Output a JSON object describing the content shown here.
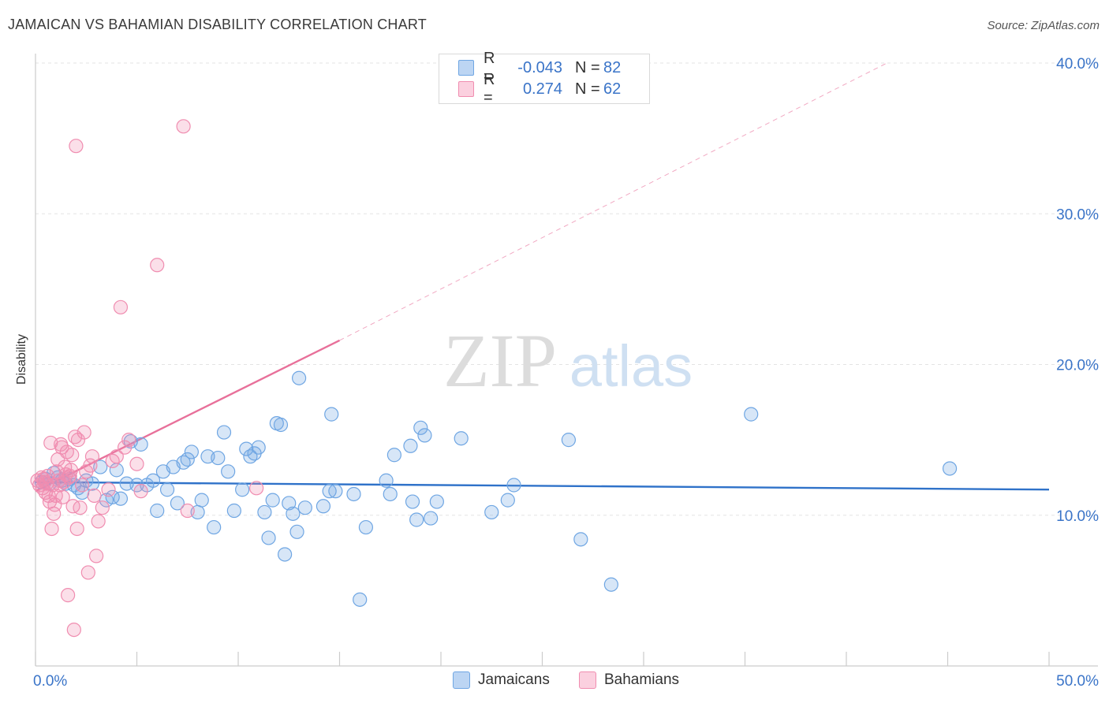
{
  "chart_data": {
    "type": "scatter",
    "title": "JAMAICAN VS BAHAMIAN DISABILITY CORRELATION CHART",
    "source": "Source: ZipAtlas.com",
    "ylabel": "Disability",
    "xlim": [
      0,
      50
    ],
    "ylim": [
      0,
      40
    ],
    "x_tick_labels": [
      "0.0%",
      "50.0%"
    ],
    "y_ticks": [
      10,
      20,
      30,
      40
    ],
    "y_tick_labels": [
      "10.0%",
      "20.0%",
      "30.0%",
      "40.0%"
    ],
    "watermark": "ZIPatlas",
    "legend": [
      {
        "name": "Jamaicans",
        "r_label": "R =",
        "r": "-0.043",
        "n_label": "N =",
        "n": "82",
        "color": "#6fa6e3"
      },
      {
        "name": "Bahamians",
        "r_label": "R =",
        "r": "0.274",
        "n_label": "N =",
        "n": "62",
        "color": "#f08db0"
      }
    ],
    "series": [
      {
        "name": "Jamaicans",
        "color": "#6fa6e3",
        "trend": {
          "x0": 0,
          "y0": 12.2,
          "x1": 50,
          "y1": 11.7,
          "color": "#2f72c9"
        },
        "points": [
          [
            0.3,
            12.2
          ],
          [
            0.5,
            12.4
          ],
          [
            0.7,
            12.1
          ],
          [
            0.9,
            12.8
          ],
          [
            1.1,
            12.5
          ],
          [
            1.3,
            12.3
          ],
          [
            1.5,
            12.1
          ],
          [
            1.7,
            12.4
          ],
          [
            1.9,
            12.0
          ],
          [
            2.1,
            11.8
          ],
          [
            2.3,
            11.5
          ],
          [
            2.5,
            12.3
          ],
          [
            2.8,
            12.1
          ],
          [
            3.2,
            13.2
          ],
          [
            3.5,
            11.0
          ],
          [
            3.8,
            11.2
          ],
          [
            4.0,
            13.0
          ],
          [
            4.2,
            11.1
          ],
          [
            4.5,
            12.1
          ],
          [
            4.7,
            14.9
          ],
          [
            5.0,
            12.0
          ],
          [
            5.2,
            14.7
          ],
          [
            5.5,
            12.0
          ],
          [
            5.8,
            12.3
          ],
          [
            6.0,
            10.3
          ],
          [
            6.3,
            12.9
          ],
          [
            6.5,
            11.7
          ],
          [
            6.8,
            13.2
          ],
          [
            7.0,
            10.8
          ],
          [
            7.3,
            13.5
          ],
          [
            7.5,
            13.7
          ],
          [
            7.7,
            14.2
          ],
          [
            8.0,
            10.2
          ],
          [
            8.2,
            11.0
          ],
          [
            8.5,
            13.9
          ],
          [
            8.8,
            9.2
          ],
          [
            9.0,
            13.8
          ],
          [
            9.3,
            15.5
          ],
          [
            9.5,
            12.9
          ],
          [
            9.8,
            10.3
          ],
          [
            10.2,
            11.7
          ],
          [
            10.4,
            14.4
          ],
          [
            10.6,
            13.9
          ],
          [
            10.8,
            14.1
          ],
          [
            11.0,
            14.5
          ],
          [
            11.3,
            10.2
          ],
          [
            11.5,
            8.5
          ],
          [
            11.7,
            11.0
          ],
          [
            11.9,
            16.1
          ],
          [
            12.1,
            16.0
          ],
          [
            12.3,
            7.4
          ],
          [
            12.5,
            10.8
          ],
          [
            12.7,
            10.1
          ],
          [
            13.0,
            19.1
          ],
          [
            12.9,
            8.9
          ],
          [
            13.3,
            10.5
          ],
          [
            14.2,
            10.6
          ],
          [
            14.5,
            11.6
          ],
          [
            14.6,
            16.7
          ],
          [
            14.8,
            11.6
          ],
          [
            15.7,
            11.4
          ],
          [
            16.0,
            4.4
          ],
          [
            16.3,
            9.2
          ],
          [
            17.3,
            12.3
          ],
          [
            17.5,
            11.4
          ],
          [
            17.7,
            14.0
          ],
          [
            18.5,
            14.6
          ],
          [
            18.6,
            10.9
          ],
          [
            18.8,
            9.7
          ],
          [
            19.0,
            15.8
          ],
          [
            19.2,
            15.3
          ],
          [
            19.5,
            9.8
          ],
          [
            19.8,
            10.9
          ],
          [
            21.0,
            15.1
          ],
          [
            22.5,
            10.2
          ],
          [
            23.3,
            11.0
          ],
          [
            23.6,
            12.0
          ],
          [
            26.3,
            15.0
          ],
          [
            26.9,
            8.4
          ],
          [
            28.4,
            5.4
          ],
          [
            35.3,
            16.7
          ],
          [
            45.1,
            13.1
          ]
        ]
      },
      {
        "name": "Bahamians",
        "color": "#f08db0",
        "trend": {
          "x0": 0,
          "y0": 11.6,
          "x1": 15,
          "y1": 21.6,
          "color": "#e8709a",
          "dash_x1": 42,
          "dash_y1": 40.0
        },
        "points": [
          [
            0.1,
            12.3
          ],
          [
            0.2,
            12.0
          ],
          [
            0.3,
            12.5
          ],
          [
            0.35,
            11.8
          ],
          [
            0.4,
            12.4
          ],
          [
            0.45,
            12.2
          ],
          [
            0.5,
            11.5
          ],
          [
            0.55,
            12.1
          ],
          [
            0.6,
            12.6
          ],
          [
            0.65,
            11.3
          ],
          [
            0.7,
            10.9
          ],
          [
            0.75,
            14.8
          ],
          [
            0.8,
            9.1
          ],
          [
            0.85,
            12.0
          ],
          [
            0.9,
            10.1
          ],
          [
            0.95,
            10.7
          ],
          [
            1.0,
            11.3
          ],
          [
            1.05,
            12.9
          ],
          [
            1.1,
            13.7
          ],
          [
            1.15,
            12.3
          ],
          [
            1.2,
            12.0
          ],
          [
            1.25,
            14.7
          ],
          [
            1.3,
            14.5
          ],
          [
            1.35,
            11.2
          ],
          [
            1.4,
            12.2
          ],
          [
            1.45,
            13.2
          ],
          [
            1.5,
            12.7
          ],
          [
            1.55,
            14.2
          ],
          [
            1.6,
            4.7
          ],
          [
            1.65,
            12.5
          ],
          [
            1.7,
            12.6
          ],
          [
            1.75,
            13.0
          ],
          [
            1.8,
            14.0
          ],
          [
            1.85,
            10.6
          ],
          [
            1.9,
            2.4
          ],
          [
            1.95,
            15.2
          ],
          [
            2.0,
            34.5
          ],
          [
            2.05,
            9.1
          ],
          [
            2.1,
            15.0
          ],
          [
            2.2,
            10.5
          ],
          [
            2.3,
            12.0
          ],
          [
            2.4,
            15.5
          ],
          [
            2.5,
            12.9
          ],
          [
            2.6,
            6.2
          ],
          [
            2.7,
            13.3
          ],
          [
            2.8,
            13.9
          ],
          [
            2.9,
            11.3
          ],
          [
            3.0,
            7.3
          ],
          [
            3.1,
            9.6
          ],
          [
            3.3,
            10.5
          ],
          [
            3.6,
            11.7
          ],
          [
            3.8,
            13.6
          ],
          [
            4.0,
            13.9
          ],
          [
            4.2,
            23.8
          ],
          [
            4.4,
            14.5
          ],
          [
            4.6,
            15.0
          ],
          [
            5.0,
            13.4
          ],
          [
            5.2,
            11.6
          ],
          [
            6.0,
            26.6
          ],
          [
            7.3,
            35.8
          ],
          [
            7.5,
            10.3
          ],
          [
            10.9,
            11.8
          ]
        ]
      }
    ]
  }
}
